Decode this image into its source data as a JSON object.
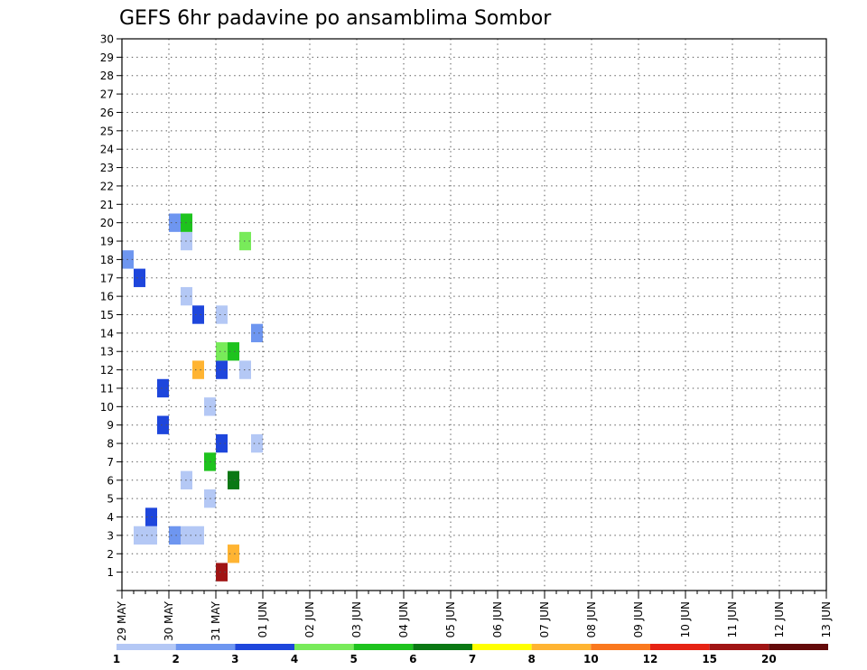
{
  "chart_data": {
    "type": "heatmap",
    "title": "GEFS 6hr padavine po ansamblima Sombor",
    "xlabel": "",
    "ylabel": "",
    "x_tick_labels": [
      "29 MAY",
      "30 MAY",
      "31 MAY",
      "01 JUN",
      "02 JUN",
      "03 JUN",
      "04 JUN",
      "05 JUN",
      "06 JUN",
      "07 JUN",
      "08 JUN",
      "09 JUN",
      "10 JUN",
      "11 JUN",
      "12 JUN",
      "13 JUN"
    ],
    "y_tick_labels": [
      "1",
      "2",
      "3",
      "4",
      "5",
      "6",
      "7",
      "8",
      "9",
      "10",
      "11",
      "12",
      "13",
      "14",
      "15",
      "16",
      "17",
      "18",
      "19",
      "20",
      "21",
      "22",
      "23",
      "24",
      "25",
      "26",
      "27",
      "28",
      "29",
      "30"
    ],
    "x_range_days": [
      0,
      15
    ],
    "y_range": [
      0,
      30
    ],
    "grid": true,
    "legend": {
      "position": "bottom",
      "bin_labels": [
        "1",
        "2",
        "3",
        "4",
        "5",
        "6",
        "7",
        "8",
        "10",
        "12",
        "15",
        "20"
      ],
      "colors": [
        "#b4c8f5",
        "#6e96f0",
        "#1e46dc",
        "#78eb5a",
        "#1ec31e",
        "#0a7814",
        "#ffff00",
        "#ffb432",
        "#fa781e",
        "#e62314",
        "#a01414",
        "#640a0a"
      ]
    },
    "members": [
      [
        [
          2.0,
          "#a01414"
        ]
      ],
      [
        [
          2.25,
          "#ffb432"
        ]
      ],
      [
        [
          0.25,
          "#b4c8f5"
        ],
        [
          0.5,
          "#b4c8f5"
        ],
        [
          1.0,
          "#6e96f0"
        ],
        [
          1.25,
          "#b4c8f5"
        ],
        [
          1.5,
          "#b4c8f5"
        ]
      ],
      [
        [
          0.5,
          "#1e46dc"
        ]
      ],
      [
        [
          1.75,
          "#b4c8f5"
        ]
      ],
      [
        [
          1.25,
          "#b4c8f5"
        ],
        [
          2.25,
          "#0a7814"
        ]
      ],
      [
        [
          1.75,
          "#1ec31e"
        ]
      ],
      [
        [
          2.0,
          "#1e46dc"
        ],
        [
          2.75,
          "#b4c8f5"
        ]
      ],
      [
        [
          0.75,
          "#1e46dc"
        ]
      ],
      [
        [
          1.75,
          "#b4c8f5"
        ]
      ],
      [
        [
          0.75,
          "#1e46dc"
        ]
      ],
      [
        [
          1.5,
          "#ffb432"
        ],
        [
          2.0,
          "#1e46dc"
        ],
        [
          2.5,
          "#b4c8f5"
        ]
      ],
      [
        [
          2.0,
          "#78eb5a"
        ],
        [
          2.25,
          "#1ec31e"
        ]
      ],
      [
        [
          2.75,
          "#6e96f0"
        ]
      ],
      [
        [
          1.5,
          "#1e46dc"
        ],
        [
          2.0,
          "#b4c8f5"
        ]
      ],
      [
        [
          1.25,
          "#b4c8f5"
        ]
      ],
      [
        [
          0.25,
          "#1e46dc"
        ]
      ],
      [
        [
          0.0,
          "#6e96f0"
        ]
      ],
      [
        [
          1.25,
          "#b4c8f5"
        ],
        [
          2.5,
          "#78eb5a"
        ]
      ],
      [
        [
          1.0,
          "#6e96f0"
        ],
        [
          1.25,
          "#1ec31e"
        ]
      ]
    ]
  }
}
